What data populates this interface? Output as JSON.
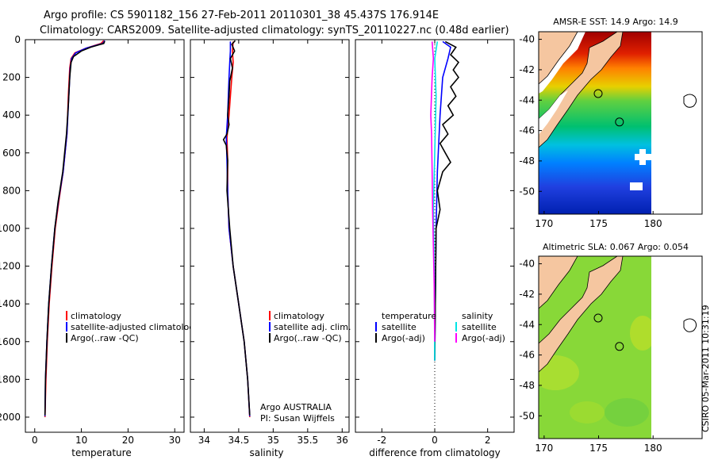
{
  "header": {
    "line1": "Argo profile: CS 5901182_156 27-Feb-2011 20110301_38 45.437S 176.914E",
    "line2": "Climatology: CARS2009. Satellite-adjusted climatology: synTS_20110227.nc (0.48d earlier)"
  },
  "side_stamp": "CSIRO 05-Mar-2011 10:31:19",
  "colors": {
    "climatology": "#ff0000",
    "satellite": "#0000ff",
    "argo": "#000000",
    "salinity_sat": "#00e5e5",
    "salinity_argo": "#ff00ff",
    "land": "#f5c6a0"
  },
  "chart_data": [
    {
      "type": "line",
      "id": "temperature",
      "xlabel": "temperature",
      "ylabel": "",
      "xlim": [
        -2,
        32
      ],
      "ylim": [
        2080,
        0
      ],
      "x_ticks": [
        0,
        10,
        20,
        30
      ],
      "y_ticks": [
        0,
        200,
        400,
        600,
        800,
        1000,
        1200,
        1400,
        1600,
        1800,
        2000
      ],
      "y_tick_labels": [
        "0",
        "200",
        "400",
        "600",
        "800",
        "1000",
        "1200",
        "1400",
        "1600",
        "1800",
        "2000"
      ],
      "x_tick_labels": [
        "0",
        "10",
        "20",
        "30"
      ],
      "legend": [
        "climatology",
        "satellite-adjusted climatology",
        "Argo(..raw -QC)"
      ],
      "series": [
        {
          "name": "climatology",
          "color": "#ff0000",
          "points": [
            [
              14.8,
              5
            ],
            [
              14.2,
              20
            ],
            [
              11,
              45
            ],
            [
              8.6,
              70
            ],
            [
              7.8,
              100
            ],
            [
              7.5,
              150
            ],
            [
              7.2,
              300
            ],
            [
              6.9,
              500
            ],
            [
              6.1,
              700
            ],
            [
              5.2,
              850
            ],
            [
              4.4,
              1000
            ],
            [
              3.7,
              1200
            ],
            [
              3.1,
              1400
            ],
            [
              2.7,
              1600
            ],
            [
              2.4,
              1800
            ],
            [
              2.2,
              2000
            ]
          ]
        },
        {
          "name": "satellite-adjusted climatology",
          "color": "#0000ff",
          "points": [
            [
              15.0,
              5
            ],
            [
              14.6,
              20
            ],
            [
              11,
              45
            ],
            [
              8.8,
              70
            ],
            [
              7.9,
              100
            ],
            [
              7.6,
              150
            ],
            [
              7.3,
              300
            ],
            [
              6.9,
              500
            ],
            [
              6.1,
              700
            ],
            [
              5.1,
              850
            ],
            [
              4.3,
              1000
            ],
            [
              3.6,
              1200
            ],
            [
              3.0,
              1400
            ],
            [
              2.6,
              1600
            ],
            [
              2.3,
              1800
            ],
            [
              2.2,
              1995
            ]
          ]
        },
        {
          "name": "Argo(..raw -QC)",
          "color": "#000000",
          "points": [
            [
              15.0,
              8
            ],
            [
              14.8,
              20
            ],
            [
              12,
              40
            ],
            [
              10,
              60
            ],
            [
              8.3,
              90
            ],
            [
              7.8,
              120
            ],
            [
              7.5,
              200
            ],
            [
              7.2,
              350
            ],
            [
              6.8,
              500
            ],
            [
              6.0,
              700
            ],
            [
              5.0,
              860
            ],
            [
              4.3,
              1000
            ],
            [
              3.6,
              1200
            ],
            [
              3.0,
              1400
            ],
            [
              2.6,
              1600
            ],
            [
              2.3,
              1800
            ],
            [
              2.2,
              1990
            ]
          ]
        }
      ]
    },
    {
      "type": "line",
      "id": "salinity",
      "xlabel": "salinity",
      "ylabel": "",
      "xlim": [
        33.8,
        36.1
      ],
      "ylim": [
        2080,
        0
      ],
      "x_ticks": [
        34,
        34.5,
        35,
        35.5,
        36
      ],
      "x_tick_labels": [
        "34",
        "34.5",
        "35",
        "35.5",
        "36"
      ],
      "legend": [
        "climatology",
        "satellite adj. clim.",
        "Argo(..raw -QC)"
      ],
      "annotation": [
        "Argo AUSTRALIA",
        "PI: Susan Wijffels"
      ],
      "series": [
        {
          "name": "climatology",
          "color": "#ff0000",
          "points": [
            [
              34.42,
              10
            ],
            [
              34.41,
              60
            ],
            [
              34.42,
              120
            ],
            [
              34.4,
              200
            ],
            [
              34.38,
              300
            ],
            [
              34.36,
              400
            ],
            [
              34.33,
              520
            ],
            [
              34.34,
              640
            ],
            [
              34.34,
              800
            ],
            [
              34.36,
              1000
            ],
            [
              34.42,
              1200
            ],
            [
              34.5,
              1400
            ],
            [
              34.58,
              1600
            ],
            [
              34.63,
              1800
            ],
            [
              34.66,
              2000
            ]
          ]
        },
        {
          "name": "satellite adj. clim.",
          "color": "#0000ff",
          "points": [
            [
              34.38,
              10
            ],
            [
              34.38,
              60
            ],
            [
              34.37,
              120
            ],
            [
              34.36,
              200
            ],
            [
              34.35,
              300
            ],
            [
              34.34,
              400
            ],
            [
              34.32,
              520
            ],
            [
              34.33,
              640
            ],
            [
              34.34,
              800
            ],
            [
              34.36,
              1000
            ],
            [
              34.42,
              1200
            ],
            [
              34.5,
              1400
            ],
            [
              34.58,
              1600
            ],
            [
              34.63,
              1800
            ],
            [
              34.66,
              1995
            ]
          ]
        },
        {
          "name": "Argo(..raw -QC)",
          "color": "#000000",
          "points": [
            [
              34.45,
              5
            ],
            [
              34.4,
              25
            ],
            [
              34.44,
              60
            ],
            [
              34.38,
              100
            ],
            [
              34.41,
              150
            ],
            [
              34.37,
              220
            ],
            [
              34.36,
              300
            ],
            [
              34.34,
              400
            ],
            [
              34.36,
              450
            ],
            [
              34.33,
              500
            ],
            [
              34.28,
              530
            ],
            [
              34.32,
              560
            ],
            [
              34.34,
              640
            ],
            [
              34.33,
              800
            ],
            [
              34.37,
              1000
            ],
            [
              34.42,
              1200
            ],
            [
              34.5,
              1400
            ],
            [
              34.58,
              1600
            ],
            [
              34.63,
              1800
            ],
            [
              34.66,
              1990
            ]
          ]
        }
      ]
    },
    {
      "type": "line",
      "id": "difference",
      "xlabel": "difference from climatology",
      "ylabel": "",
      "xlim": [
        -3,
        3
      ],
      "ylim": [
        2080,
        0
      ],
      "x_ticks": [
        -2,
        0,
        2
      ],
      "x_tick_labels": [
        "-2",
        "0",
        "2"
      ],
      "legend_left_title": "temperature",
      "legend_right_title": "salinity",
      "legend_left": [
        "satellite",
        "Argo(-adj)"
      ],
      "legend_right": [
        "satellite",
        "Argo(-adj)"
      ],
      "series": [
        {
          "name": "temperature satellite",
          "color": "#0000ff",
          "points": [
            [
              0.3,
              10
            ],
            [
              0.6,
              40
            ],
            [
              0.5,
              100
            ],
            [
              0.3,
              200
            ],
            [
              0.2,
              400
            ],
            [
              0.1,
              700
            ],
            [
              0.05,
              1000
            ],
            [
              0.02,
              1400
            ],
            [
              0.0,
              1700
            ]
          ]
        },
        {
          "name": "temperature Argo(-adj)",
          "color": "#000000",
          "points": [
            [
              0.4,
              10
            ],
            [
              0.8,
              40
            ],
            [
              0.6,
              80
            ],
            [
              0.9,
              120
            ],
            [
              0.7,
              160
            ],
            [
              0.9,
              200
            ],
            [
              0.6,
              250
            ],
            [
              0.8,
              300
            ],
            [
              0.5,
              350
            ],
            [
              0.7,
              400
            ],
            [
              0.3,
              450
            ],
            [
              0.5,
              500
            ],
            [
              0.2,
              550
            ],
            [
              0.4,
              600
            ],
            [
              0.6,
              650
            ],
            [
              0.3,
              700
            ],
            [
              0.1,
              800
            ],
            [
              0.2,
              900
            ],
            [
              0.05,
              1000
            ],
            [
              0.0,
              1700
            ]
          ]
        },
        {
          "name": "salinity satellite",
          "color": "#00e5e5",
          "points": [
            [
              0.1,
              10
            ],
            [
              0.0,
              100
            ],
            [
              0.05,
              300
            ],
            [
              0.0,
              600
            ],
            [
              -0.05,
              900
            ],
            [
              -0.02,
              1200
            ],
            [
              0.0,
              1700
            ]
          ]
        },
        {
          "name": "salinity Argo(-adj)",
          "color": "#ff00ff",
          "points": [
            [
              -0.1,
              10
            ],
            [
              -0.05,
              100
            ],
            [
              -0.1,
              200
            ],
            [
              -0.15,
              400
            ],
            [
              -0.12,
              500
            ],
            [
              -0.1,
              700
            ],
            [
              -0.08,
              900
            ],
            [
              -0.05,
              1100
            ],
            [
              -0.02,
              1300
            ],
            [
              0.0,
              1600
            ]
          ]
        }
      ]
    },
    {
      "type": "heatmap",
      "id": "sst_map",
      "title": "AMSR-E SST: 14.9 Argo: 14.9",
      "xlim": [
        169.5,
        184.5
      ],
      "ylim": [
        -51.5,
        -39.5
      ],
      "x_ticks": [
        170,
        175,
        180
      ],
      "x_tick_labels": [
        "170",
        "175",
        "180"
      ],
      "y_ticks": [
        -40,
        -42,
        -44,
        -46,
        -48,
        -50
      ],
      "y_tick_labels": [
        "-40",
        "-42",
        "-44",
        "-46",
        "-48",
        "-50"
      ],
      "float_position": [
        176.914,
        -45.437
      ]
    },
    {
      "type": "heatmap",
      "id": "sla_map",
      "title": "Altimetric SLA: 0.067 Argo: 0.054",
      "xlim": [
        169.5,
        184.5
      ],
      "ylim": [
        -51.5,
        -39.5
      ],
      "x_ticks": [
        170,
        175,
        180
      ],
      "x_tick_labels": [
        "170",
        "175",
        "180"
      ],
      "y_ticks": [
        -40,
        -42,
        -44,
        -46,
        -48,
        -50
      ],
      "y_tick_labels": [
        "-40",
        "-42",
        "-44",
        "-46",
        "-48",
        "-50"
      ],
      "float_position": [
        176.914,
        -45.437
      ]
    }
  ]
}
